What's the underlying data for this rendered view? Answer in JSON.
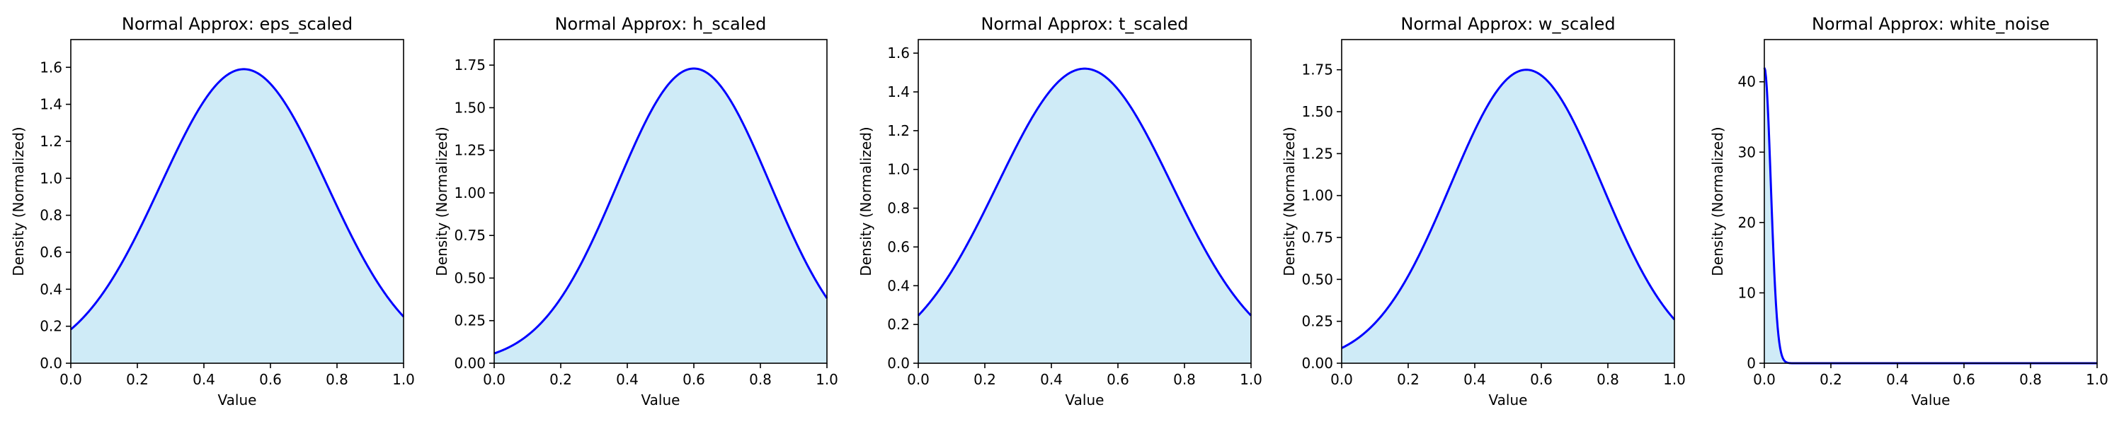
{
  "colors": {
    "line": "#0000ff",
    "fill": "#87ceeb",
    "fill_opacity": 0.4,
    "axes": "#000000",
    "background": "#ffffff"
  },
  "chart_data": [
    {
      "type": "area",
      "title": "Normal Approx: eps_scaled",
      "xlabel": "Value",
      "ylabel": "Density (Normalized)",
      "xlim": [
        0,
        1
      ],
      "ylim": [
        0,
        1.75
      ],
      "xticks": [
        "0.0",
        "0.2",
        "0.4",
        "0.6",
        "0.8",
        "1.0"
      ],
      "yticks": [
        "0.0",
        "0.2",
        "0.4",
        "0.6",
        "0.8",
        "1.0",
        "1.2",
        "1.4",
        "1.6"
      ],
      "ytick_values": [
        0,
        0.2,
        0.4,
        0.6,
        0.8,
        1.0,
        1.2,
        1.4,
        1.6
      ],
      "series": [
        {
          "distribution": "normal",
          "mean": 0.52,
          "std": 0.25,
          "peak": 1.59
        }
      ]
    },
    {
      "type": "area",
      "title": "Normal Approx: h_scaled",
      "xlabel": "Value",
      "ylabel": "Density (Normalized)",
      "xlim": [
        0,
        1
      ],
      "ylim": [
        0,
        1.9
      ],
      "xticks": [
        "0.0",
        "0.2",
        "0.4",
        "0.6",
        "0.8",
        "1.0"
      ],
      "yticks": [
        "0.00",
        "0.25",
        "0.50",
        "0.75",
        "1.00",
        "1.25",
        "1.50",
        "1.75"
      ],
      "ytick_values": [
        0,
        0.25,
        0.5,
        0.75,
        1.0,
        1.25,
        1.5,
        1.75
      ],
      "series": [
        {
          "distribution": "normal",
          "mean": 0.6,
          "std": 0.23,
          "peak": 1.73
        }
      ]
    },
    {
      "type": "area",
      "title": "Normal Approx: t_scaled",
      "xlabel": "Value",
      "ylabel": "Density (Normalized)",
      "xlim": [
        0,
        1
      ],
      "ylim": [
        0,
        1.67
      ],
      "xticks": [
        "0.0",
        "0.2",
        "0.4",
        "0.6",
        "0.8",
        "1.0"
      ],
      "yticks": [
        "0.0",
        "0.2",
        "0.4",
        "0.6",
        "0.8",
        "1.0",
        "1.2",
        "1.4",
        "1.6"
      ],
      "ytick_values": [
        0,
        0.2,
        0.4,
        0.6,
        0.8,
        1.0,
        1.2,
        1.4,
        1.6
      ],
      "series": [
        {
          "distribution": "normal",
          "mean": 0.5,
          "std": 0.262,
          "peak": 1.52
        }
      ]
    },
    {
      "type": "area",
      "title": "Normal Approx: w_scaled",
      "xlabel": "Value",
      "ylabel": "Density (Normalized)",
      "xlim": [
        0,
        1
      ],
      "ylim": [
        0,
        1.93
      ],
      "xticks": [
        "0.0",
        "0.2",
        "0.4",
        "0.6",
        "0.8",
        "1.0"
      ],
      "yticks": [
        "0.00",
        "0.25",
        "0.50",
        "0.75",
        "1.00",
        "1.25",
        "1.50",
        "1.75"
      ],
      "ytick_values": [
        0,
        0.25,
        0.5,
        0.75,
        1.0,
        1.25,
        1.5,
        1.75
      ],
      "series": [
        {
          "distribution": "normal",
          "mean": 0.555,
          "std": 0.228,
          "peak": 1.75
        }
      ]
    },
    {
      "type": "area",
      "title": "Normal Approx: white_noise",
      "xlabel": "Value",
      "ylabel": "Density (Normalized)",
      "xlim": [
        0,
        1
      ],
      "ylim": [
        0,
        46
      ],
      "xticks": [
        "0.0",
        "0.2",
        "0.4",
        "0.6",
        "0.8",
        "1.0"
      ],
      "yticks": [
        "0",
        "10",
        "20",
        "30",
        "40"
      ],
      "ytick_values": [
        0,
        10,
        20,
        30,
        40
      ],
      "series": [
        {
          "distribution": "normal",
          "mean": 0.0,
          "std": 0.0195,
          "peak": 42
        }
      ]
    }
  ]
}
